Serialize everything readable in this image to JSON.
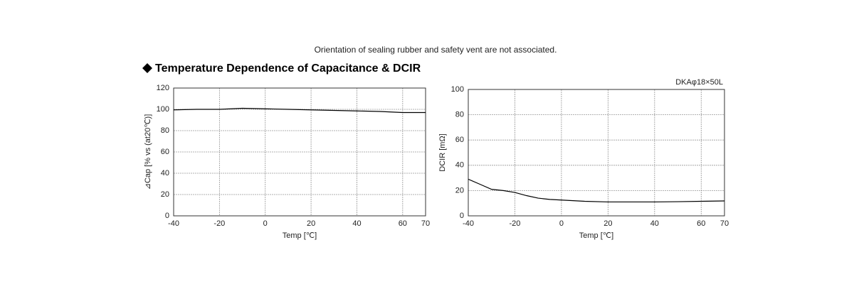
{
  "header": {
    "note": "Orientation of sealing rubber and safety vent are not associated.",
    "title": "Temperature Dependence of Capacitance & DCIR"
  },
  "chart_data": [
    {
      "type": "line",
      "xlabel": "Temp [℃]",
      "ylabel": "⊿Cap [% vs (at20℃)]",
      "x": [
        -40,
        -30,
        -20,
        -10,
        0,
        10,
        20,
        30,
        40,
        50,
        60,
        70
      ],
      "values": [
        99.5,
        100,
        100,
        101,
        100.5,
        100,
        99.5,
        99,
        98.5,
        98,
        97,
        97
      ],
      "color": "#000000",
      "xlim": [
        -40,
        70
      ],
      "xticks": [
        -40,
        -20,
        0,
        20,
        40,
        60,
        70
      ],
      "ylim": [
        0,
        120
      ],
      "yticks": [
        0,
        20,
        40,
        60,
        80,
        100,
        120
      ],
      "grid": true
    },
    {
      "type": "line",
      "xlabel": "Temp [℃]",
      "ylabel": "DCIR [mΩ]",
      "annotation": "DKAφ18×50L",
      "x": [
        -40,
        -35,
        -30,
        -25,
        -20,
        -15,
        -10,
        -5,
        0,
        10,
        20,
        30,
        40,
        50,
        60,
        70
      ],
      "values": [
        29,
        25,
        21,
        20,
        18.5,
        16,
        14,
        13,
        12.5,
        11.5,
        11,
        11,
        11,
        11.2,
        11.5,
        11.8
      ],
      "color": "#000000",
      "xlim": [
        -40,
        70
      ],
      "xticks": [
        -40,
        -20,
        0,
        20,
        40,
        60,
        70
      ],
      "ylim": [
        0,
        100
      ],
      "yticks": [
        0,
        20,
        40,
        60,
        80,
        100
      ],
      "grid": true
    }
  ]
}
